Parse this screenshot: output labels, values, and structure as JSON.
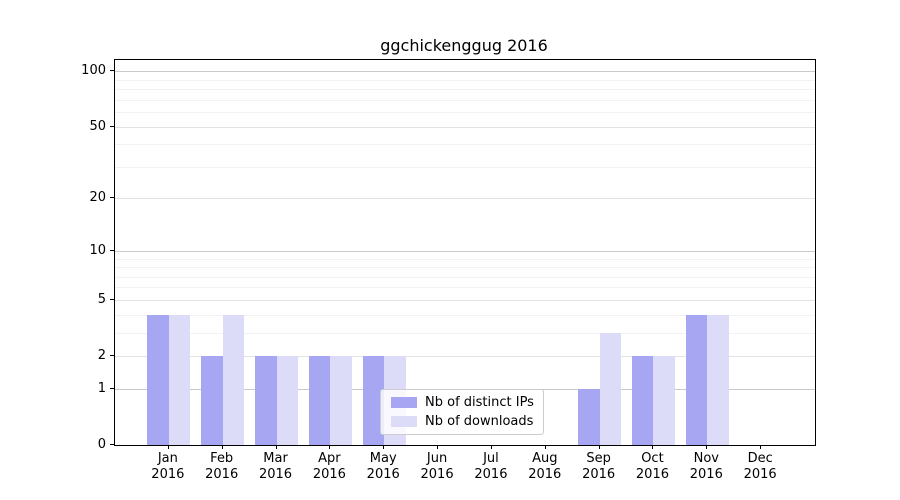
{
  "chart_data": {
    "type": "bar",
    "title": "ggchickenggug 2016",
    "categories": [
      "Jan",
      "Feb",
      "Mar",
      "Apr",
      "May",
      "Jun",
      "Jul",
      "Aug",
      "Sep",
      "Oct",
      "Nov",
      "Dec"
    ],
    "category_year": "2016",
    "series": [
      {
        "name": "Nb of distinct IPs",
        "color": "#a6a6f2",
        "values": [
          4,
          2,
          2,
          2,
          2,
          0,
          0,
          0,
          1,
          2,
          4,
          0
        ]
      },
      {
        "name": "Nb of downloads",
        "color": "#dcdcf8",
        "values": [
          4,
          4,
          2,
          2,
          2,
          0,
          0,
          0,
          3,
          2,
          4,
          0
        ]
      }
    ],
    "yscale": "log10(1+x)",
    "ylim": [
      0,
      115
    ],
    "yticks": [
      0,
      1,
      2,
      5,
      10,
      20,
      50,
      100
    ],
    "ytick_labels": [
      "0",
      "1",
      "2",
      "5",
      "10",
      "20",
      "50",
      "100"
    ],
    "decade_gridlines": [
      1,
      10,
      100
    ],
    "major_gridlines": [
      2,
      5,
      20,
      50
    ],
    "minor_gridlines": [
      3,
      4,
      6,
      7,
      8,
      9,
      30,
      40,
      60,
      70,
      80,
      90
    ],
    "grid": true,
    "legend_position": "lower center"
  }
}
